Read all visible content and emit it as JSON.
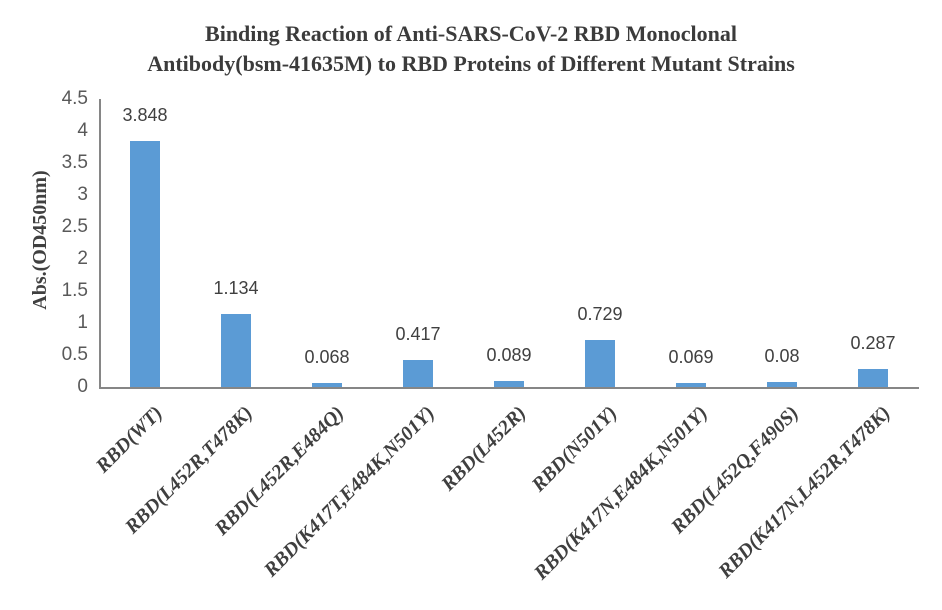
{
  "chart": {
    "title_line1": "Binding Reaction of Anti-SARS-CoV-2 RBD Monoclonal",
    "title_line2": "Antibody(bsm-41635M) to RBD Proteins of Different Mutant Strains",
    "ylabel": "Abs.(OD450nm)"
  },
  "chart_data": {
    "type": "bar",
    "title": "Binding Reaction of Anti-SARS-CoV-2 RBD Monoclonal Antibody(bsm-41635M) to RBD Proteins of Different Mutant Strains",
    "xlabel": "",
    "ylabel": "Abs.(OD450nm)",
    "categories": [
      "RBD(WT)",
      "RBD(L452R,T478K)",
      "RBD(L452R,E484Q)",
      "RBD(K417T,E484K,N501Y)",
      "RBD(L452R)",
      "RBD(N501Y)",
      "RBD(K417N,E484K,N501Y)",
      "RBD(L452Q,F490S)",
      "RBD(K417N,L452R,T478K)"
    ],
    "values": [
      3.848,
      1.134,
      0.068,
      0.417,
      0.089,
      0.729,
      0.069,
      0.08,
      0.287
    ],
    "data_labels": [
      "3.848",
      "1.134",
      "0.068",
      "0.417",
      "0.089",
      "0.729",
      "0.069",
      "0.08",
      "0.287"
    ],
    "ylim": [
      0,
      4.5
    ],
    "ytick_step": 0.5,
    "ytick_labels": [
      "0",
      "0.5",
      "1",
      "1.5",
      "2",
      "2.5",
      "3",
      "3.5",
      "4",
      "4.5"
    ],
    "grid": false,
    "legend": "none",
    "colors": {
      "bar": "#5b9bd5",
      "axis": "#868686",
      "tick_labels": "#595959",
      "data_labels": "#404040",
      "title": "#3b3b3b",
      "y_axis_title": "#404040",
      "category_labels": "#3f3f3f",
      "background": "#ffffff"
    }
  }
}
